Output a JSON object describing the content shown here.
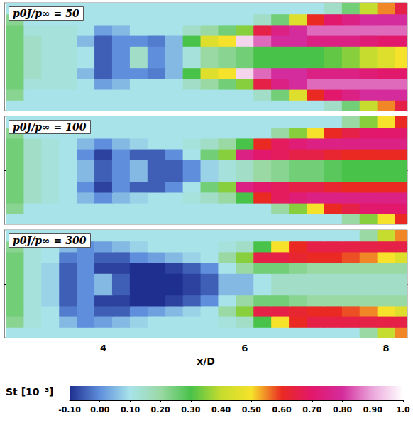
{
  "chart_data": {
    "type": "heatmap",
    "xlabel": "x/D",
    "xlim": [
      2.6,
      8.3
    ],
    "xticks": [
      4,
      6,
      8
    ],
    "ylim": [
      -0.75,
      0.75
    ],
    "tick_labels": "x",
    "x": [
      2.75,
      3.0,
      3.25,
      3.5,
      3.75,
      4.0,
      4.25,
      4.5,
      4.75,
      5.0,
      5.25,
      5.5,
      5.75,
      6.0,
      6.25,
      6.5,
      6.75,
      7.0,
      7.25,
      7.5,
      7.75,
      8.0,
      8.25
    ],
    "y": [
      -0.675,
      -0.525,
      -0.375,
      -0.225,
      -0.075,
      0.075,
      0.225,
      0.375,
      0.525,
      0.675
    ],
    "colorbar": {
      "label": "St [10⁻³]",
      "range": [
        -0.1,
        1.0
      ],
      "ticks": [
        {
          "value": -0.1,
          "label": "-0.10"
        },
        {
          "value": 0.0,
          "label": "0.00"
        },
        {
          "value": 0.1,
          "label": "0.10"
        },
        {
          "value": 0.2,
          "label": "0.20"
        },
        {
          "value": 0.3,
          "label": "0.30"
        },
        {
          "value": 0.4,
          "label": "0.40"
        },
        {
          "value": 0.5,
          "label": "0.50"
        },
        {
          "value": 0.6,
          "label": "0.60"
        },
        {
          "value": 0.7,
          "label": "0.70"
        },
        {
          "value": 0.8,
          "label": "0.80"
        },
        {
          "value": 0.9,
          "label": "0.90"
        },
        {
          "value": 1.0,
          "label": "1.0"
        }
      ]
    },
    "panels": [
      {
        "title": "p0J/p∞ = 50",
        "cells": [
          [
            0.1,
            0.1,
            0.1,
            0.1,
            0.1,
            0.1,
            0.1,
            0.1,
            0.1,
            0.1,
            0.1,
            0.1,
            0.1,
            0.1,
            0.1,
            0.1,
            0.1,
            0.1,
            0.15,
            0.25,
            0.4,
            0.55,
            0.65
          ],
          [
            0.22,
            0.1,
            0.1,
            0.1,
            0.1,
            0.1,
            0.1,
            0.1,
            0.1,
            0.1,
            0.1,
            0.1,
            0.1,
            0.1,
            0.15,
            0.25,
            0.45,
            0.6,
            0.7,
            0.75,
            0.8,
            0.8,
            0.8
          ],
          [
            0.25,
            0.12,
            0.12,
            0.12,
            0.1,
            0.02,
            0.05,
            0.1,
            0.1,
            0.1,
            0.15,
            0.2,
            0.25,
            0.35,
            0.65,
            0.75,
            0.8,
            0.85,
            0.85,
            0.85,
            0.85,
            0.85,
            0.85
          ],
          [
            0.25,
            0.15,
            0.12,
            0.12,
            0.05,
            -0.05,
            0.0,
            0.0,
            -0.02,
            0.05,
            0.3,
            0.45,
            0.5,
            0.95,
            0.85,
            0.8,
            0.8,
            0.75,
            0.75,
            0.75,
            0.72,
            0.7,
            0.7
          ],
          [
            0.25,
            0.15,
            0.12,
            0.12,
            0.1,
            -0.05,
            0.0,
            0.15,
            0.0,
            0.05,
            0.12,
            0.2,
            0.22,
            0.25,
            0.3,
            0.3,
            0.3,
            0.3,
            0.32,
            0.35,
            0.4,
            0.45,
            0.5
          ],
          [
            0.25,
            0.15,
            0.12,
            0.12,
            0.1,
            -0.05,
            0.0,
            0.15,
            0.0,
            0.05,
            0.12,
            0.2,
            0.22,
            0.25,
            0.3,
            0.3,
            0.3,
            0.3,
            0.32,
            0.35,
            0.4,
            0.45,
            0.5
          ],
          [
            0.25,
            0.15,
            0.12,
            0.12,
            0.05,
            -0.05,
            0.0,
            0.0,
            -0.02,
            0.05,
            0.3,
            0.45,
            0.5,
            0.95,
            0.85,
            0.8,
            0.8,
            0.75,
            0.75,
            0.75,
            0.72,
            0.7,
            0.7
          ],
          [
            0.25,
            0.12,
            0.12,
            0.12,
            0.1,
            0.02,
            0.05,
            0.1,
            0.1,
            0.1,
            0.15,
            0.2,
            0.25,
            0.35,
            0.65,
            0.75,
            0.8,
            0.85,
            0.85,
            0.85,
            0.85,
            0.85,
            0.85
          ],
          [
            0.22,
            0.1,
            0.1,
            0.1,
            0.1,
            0.1,
            0.1,
            0.1,
            0.1,
            0.1,
            0.1,
            0.1,
            0.1,
            0.1,
            0.15,
            0.25,
            0.45,
            0.6,
            0.7,
            0.75,
            0.8,
            0.8,
            0.8
          ],
          [
            0.1,
            0.1,
            0.1,
            0.1,
            0.1,
            0.1,
            0.1,
            0.1,
            0.1,
            0.1,
            0.1,
            0.1,
            0.1,
            0.1,
            0.1,
            0.1,
            0.1,
            0.1,
            0.15,
            0.25,
            0.4,
            0.55,
            0.65
          ]
        ]
      },
      {
        "title": "p0J/p∞ = 100",
        "cells": [
          [
            0.1,
            0.1,
            0.1,
            0.1,
            0.1,
            0.1,
            0.1,
            0.1,
            0.1,
            0.1,
            0.1,
            0.1,
            0.1,
            0.1,
            0.1,
            0.1,
            0.1,
            0.1,
            0.1,
            0.2,
            0.35,
            0.5,
            0.6
          ],
          [
            0.22,
            0.1,
            0.1,
            0.1,
            0.1,
            0.1,
            0.1,
            0.1,
            0.1,
            0.1,
            0.1,
            0.1,
            0.1,
            0.1,
            0.1,
            0.2,
            0.35,
            0.5,
            0.6,
            0.65,
            0.7,
            0.7,
            0.7
          ],
          [
            0.25,
            0.15,
            0.12,
            0.1,
            0.05,
            0.0,
            0.05,
            0.08,
            0.1,
            0.1,
            0.12,
            0.15,
            0.2,
            0.3,
            0.6,
            0.68,
            0.72,
            0.75,
            0.75,
            0.75,
            0.75,
            0.75,
            0.75
          ],
          [
            0.25,
            0.15,
            0.12,
            0.1,
            0.0,
            -0.08,
            0.0,
            -0.05,
            -0.05,
            0.0,
            0.1,
            0.25,
            0.35,
            0.75,
            0.7,
            0.68,
            0.65,
            0.65,
            0.62,
            0.6,
            0.6,
            0.6,
            0.6
          ],
          [
            0.25,
            0.15,
            0.12,
            0.1,
            0.05,
            -0.05,
            0.0,
            0.05,
            -0.05,
            -0.05,
            0.0,
            0.08,
            0.12,
            0.15,
            0.2,
            0.22,
            0.25,
            0.25,
            0.28,
            0.3,
            0.3,
            0.3,
            0.3
          ],
          [
            0.25,
            0.15,
            0.12,
            0.1,
            0.05,
            -0.05,
            0.0,
            0.05,
            -0.05,
            -0.05,
            0.0,
            0.08,
            0.12,
            0.15,
            0.2,
            0.22,
            0.25,
            0.25,
            0.28,
            0.3,
            0.3,
            0.3,
            0.3
          ],
          [
            0.25,
            0.15,
            0.12,
            0.1,
            0.0,
            -0.08,
            0.0,
            -0.05,
            -0.05,
            0.0,
            0.1,
            0.25,
            0.35,
            0.75,
            0.7,
            0.68,
            0.65,
            0.65,
            0.62,
            0.6,
            0.6,
            0.6,
            0.6
          ],
          [
            0.25,
            0.15,
            0.12,
            0.1,
            0.05,
            0.0,
            0.05,
            0.08,
            0.1,
            0.1,
            0.12,
            0.15,
            0.2,
            0.3,
            0.6,
            0.68,
            0.72,
            0.75,
            0.75,
            0.75,
            0.75,
            0.75,
            0.75
          ],
          [
            0.22,
            0.1,
            0.1,
            0.1,
            0.1,
            0.1,
            0.1,
            0.1,
            0.1,
            0.1,
            0.1,
            0.1,
            0.1,
            0.1,
            0.1,
            0.2,
            0.35,
            0.5,
            0.6,
            0.65,
            0.7,
            0.7,
            0.7
          ],
          [
            0.1,
            0.1,
            0.1,
            0.1,
            0.1,
            0.1,
            0.1,
            0.1,
            0.1,
            0.1,
            0.1,
            0.1,
            0.1,
            0.1,
            0.1,
            0.1,
            0.1,
            0.1,
            0.1,
            0.2,
            0.35,
            0.5,
            0.6
          ]
        ]
      },
      {
        "title": "p0J/p∞ = 300",
        "cells": [
          [
            0.1,
            0.1,
            0.1,
            0.1,
            0.1,
            0.1,
            0.1,
            0.1,
            0.1,
            0.1,
            0.1,
            0.1,
            0.1,
            0.1,
            0.1,
            0.1,
            0.1,
            0.1,
            0.1,
            0.1,
            0.2,
            0.4,
            0.55
          ],
          [
            0.22,
            0.12,
            0.1,
            0.05,
            0.0,
            0.02,
            0.05,
            0.08,
            0.1,
            0.1,
            0.1,
            0.1,
            0.12,
            0.15,
            0.3,
            0.5,
            0.6,
            0.65,
            0.65,
            0.65,
            0.65,
            0.65,
            0.65
          ],
          [
            0.25,
            0.12,
            0.1,
            -0.02,
            0.0,
            -0.05,
            -0.05,
            0.0,
            0.02,
            0.05,
            0.08,
            0.1,
            0.2,
            0.35,
            0.65,
            0.65,
            0.62,
            0.6,
            0.6,
            0.58,
            0.55,
            0.5,
            0.45
          ],
          [
            0.25,
            0.12,
            0.08,
            -0.05,
            0.0,
            -0.08,
            -0.08,
            -0.1,
            -0.1,
            -0.08,
            -0.05,
            0.0,
            0.1,
            0.2,
            0.25,
            0.25,
            0.22,
            0.2,
            0.2,
            0.2,
            0.2,
            0.2,
            0.2
          ],
          [
            0.25,
            0.12,
            0.08,
            -0.05,
            0.0,
            0.05,
            -0.05,
            -0.1,
            -0.1,
            -0.1,
            -0.08,
            -0.05,
            0.05,
            0.05,
            0.1,
            0.15,
            0.15,
            0.15,
            0.15,
            0.15,
            0.15,
            0.15,
            0.15
          ],
          [
            0.25,
            0.12,
            0.08,
            -0.05,
            0.0,
            0.05,
            -0.05,
            -0.1,
            -0.1,
            -0.1,
            -0.08,
            -0.05,
            0.05,
            0.05,
            0.1,
            0.15,
            0.15,
            0.15,
            0.15,
            0.15,
            0.15,
            0.15,
            0.15
          ],
          [
            0.25,
            0.12,
            0.08,
            -0.05,
            0.0,
            -0.08,
            -0.08,
            -0.1,
            -0.1,
            -0.08,
            -0.05,
            0.0,
            0.1,
            0.2,
            0.25,
            0.25,
            0.22,
            0.2,
            0.2,
            0.2,
            0.2,
            0.2,
            0.2
          ],
          [
            0.25,
            0.12,
            0.1,
            -0.02,
            0.0,
            -0.05,
            -0.05,
            0.0,
            0.02,
            0.05,
            0.08,
            0.1,
            0.2,
            0.35,
            0.65,
            0.65,
            0.62,
            0.6,
            0.6,
            0.58,
            0.55,
            0.5,
            0.45
          ],
          [
            0.22,
            0.12,
            0.1,
            0.05,
            0.0,
            0.02,
            0.05,
            0.08,
            0.1,
            0.1,
            0.1,
            0.1,
            0.12,
            0.15,
            0.3,
            0.5,
            0.6,
            0.65,
            0.65,
            0.65,
            0.65,
            0.65,
            0.65
          ],
          [
            0.1,
            0.1,
            0.1,
            0.1,
            0.1,
            0.1,
            0.1,
            0.1,
            0.1,
            0.1,
            0.1,
            0.1,
            0.1,
            0.1,
            0.1,
            0.1,
            0.1,
            0.1,
            0.1,
            0.1,
            0.2,
            0.4,
            0.55
          ]
        ]
      }
    ]
  }
}
